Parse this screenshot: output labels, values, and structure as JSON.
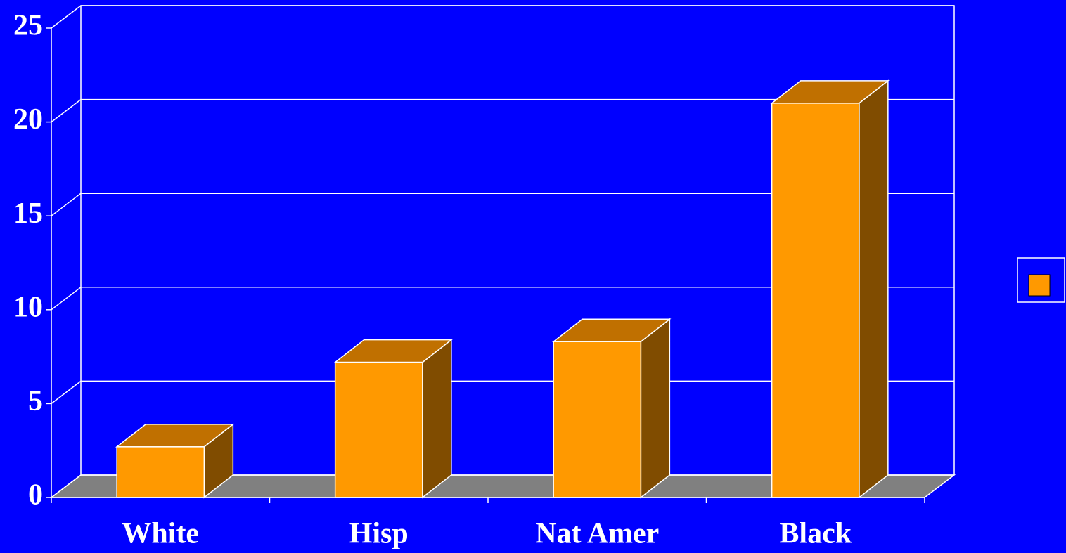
{
  "chart_data": {
    "type": "bar3d",
    "categories": [
      "White",
      "Hisp",
      "Nat Amer",
      "Black"
    ],
    "values": [
      2.7,
      7.2,
      8.3,
      21
    ],
    "color": "#ff9900",
    "ylim": [
      0,
      25
    ],
    "yticks": [
      0,
      5,
      10,
      15,
      20,
      25
    ],
    "grid": true,
    "legend": "right"
  }
}
